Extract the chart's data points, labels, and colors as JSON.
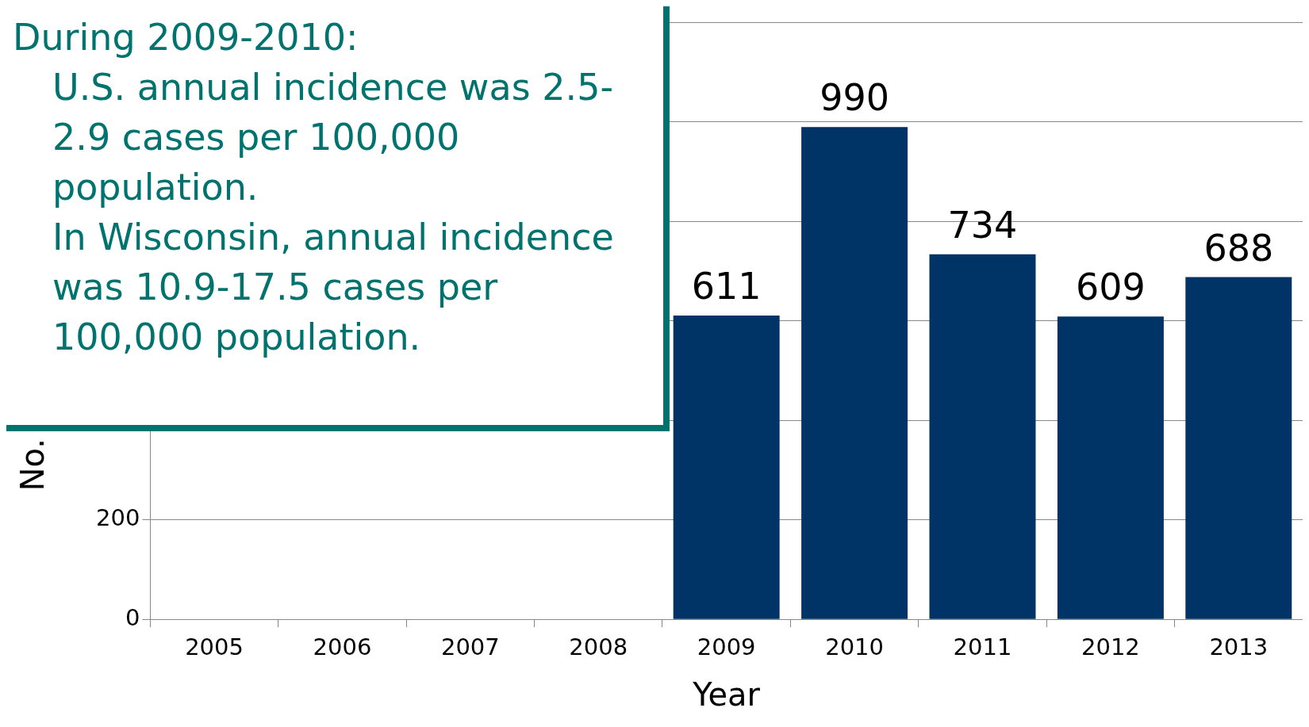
{
  "chart_data": {
    "type": "bar",
    "xlabel": "Year",
    "ylabel": "No.",
    "categories": [
      "2005",
      "2006",
      "2007",
      "2008",
      "2009",
      "2010",
      "2011",
      "2012",
      "2013"
    ],
    "values": [
      null,
      null,
      null,
      null,
      611,
      990,
      734,
      609,
      688
    ],
    "color": "#003366",
    "data_labels": true,
    "ylim": [
      0,
      1200
    ],
    "yticks": [
      0,
      200,
      {
        "value": 400,
        "label": null
      },
      {
        "value": 600,
        "label": null
      },
      {
        "value": 800,
        "label": null
      },
      {
        "value": 1000,
        "label": null
      },
      {
        "value": 1200,
        "label": null
      }
    ],
    "grid": "y",
    "annotations": [
      "During 2009-2010:",
      "U.S. annual incidence was 2.5-2.9 cases per 100,000 population.",
      "In Wisconsin, annual incidence was 10.9-17.5 cases per 100,000 population."
    ]
  }
}
